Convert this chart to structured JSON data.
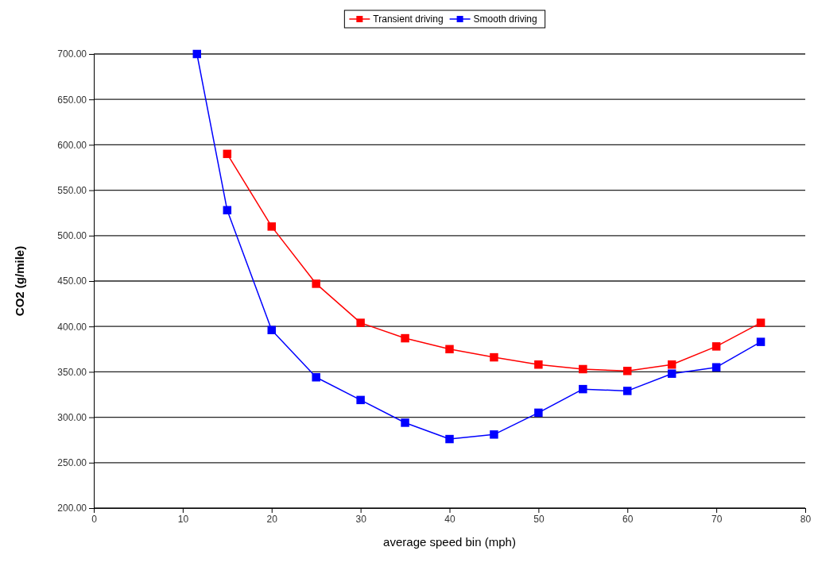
{
  "chart_data": {
    "type": "line",
    "xlabel": "average speed bin (mph)",
    "ylabel": "CO2 (g/mile)",
    "xlim": [
      0,
      80
    ],
    "xticks": [
      0,
      10,
      20,
      30,
      40,
      50,
      60,
      70,
      80
    ],
    "ylim": [
      200,
      700
    ],
    "yticks": [
      {
        "value": 200,
        "label": "200.00"
      },
      {
        "value": 250,
        "label": "250.00"
      },
      {
        "value": 300,
        "label": "300.00"
      },
      {
        "value": 350,
        "label": "350.00"
      },
      {
        "value": 400,
        "label": "400.00"
      },
      {
        "value": 450,
        "label": "450.00"
      },
      {
        "value": 500,
        "label": "500.00"
      },
      {
        "value": 550,
        "label": "550.00"
      },
      {
        "value": 600,
        "label": "600.00"
      },
      {
        "value": 650,
        "label": "650.00"
      },
      {
        "value": 700,
        "label": "700.00"
      }
    ],
    "grid": "y",
    "legend": "top",
    "marker": "square",
    "line_style": "solid",
    "x": [
      11.6,
      15,
      20,
      25,
      30,
      35,
      40,
      45,
      50,
      55,
      60,
      65,
      70,
      75
    ],
    "series": [
      {
        "name": "Transient driving",
        "color": "#ff0000",
        "values": [
          null,
          590,
          510,
          447,
          404,
          387,
          375,
          366,
          358,
          353,
          351,
          358,
          378,
          404
        ]
      },
      {
        "name": "Smooth driving",
        "color": "#0000ff",
        "values": [
          700,
          528,
          396,
          344,
          319,
          294,
          276,
          281,
          305,
          331,
          329,
          348,
          355,
          383
        ]
      }
    ]
  }
}
